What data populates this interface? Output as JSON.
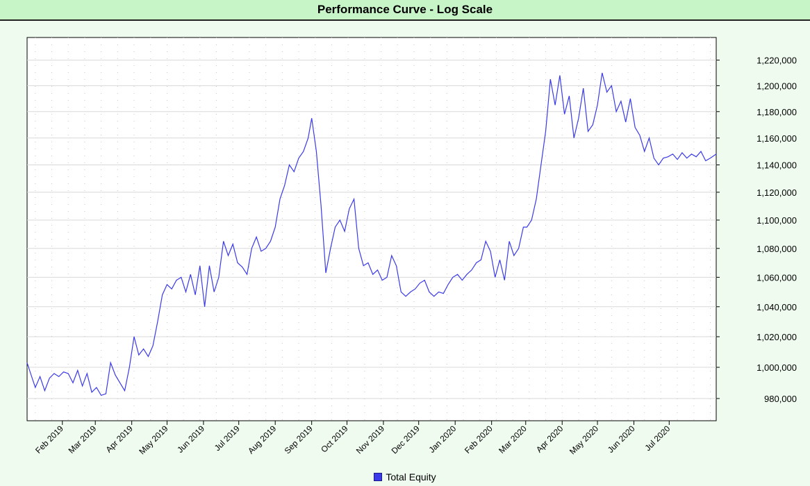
{
  "chart_data": {
    "type": "line",
    "title": "Performance Curve - Log Scale",
    "xlabel": "",
    "ylabel": "",
    "yscale": "log",
    "ylim": [
      966000,
      1238000
    ],
    "xlim": [
      "2019-01-02",
      "2020-08-10"
    ],
    "grid": true,
    "legend_position": "bottom",
    "y_ticks": [
      980000,
      1000000,
      1020000,
      1040000,
      1060000,
      1080000,
      1100000,
      1120000,
      1140000,
      1160000,
      1180000,
      1200000,
      1220000
    ],
    "y_tick_labels": [
      "980,000",
      "1,000,000",
      "1,020,000",
      "1,040,000",
      "1,060,000",
      "1,080,000",
      "1,100,000",
      "1,120,000",
      "1,140,000",
      "1,160,000",
      "1,180,000",
      "1,200,000",
      "1,220,000"
    ],
    "x_ticks": [
      "2019-02-01",
      "2019-03-01",
      "2019-04-01",
      "2019-05-01",
      "2019-06-01",
      "2019-07-01",
      "2019-08-01",
      "2019-09-01",
      "2019-10-01",
      "2019-11-01",
      "2019-12-01",
      "2020-01-01",
      "2020-02-01",
      "2020-03-01",
      "2020-04-01",
      "2020-05-01",
      "2020-06-01",
      "2020-07-01"
    ],
    "x_tick_labels": [
      "Feb 2019",
      "Mar 2019",
      "Apr 2019",
      "May 2019",
      "Jun 2019",
      "Jul 2019",
      "Aug 2019",
      "Sep 2019",
      "Oct 2019",
      "Nov 2019",
      "Dec 2019",
      "Jan 2020",
      "Feb 2020",
      "Mar 2020",
      "Apr 2020",
      "May 2020",
      "Jun 2020",
      "Jul 2020"
    ],
    "series": [
      {
        "name": "Total Equity",
        "color": "#3a3ae8",
        "x": [
          "2019-01-02",
          "2019-01-05",
          "2019-01-09",
          "2019-01-13",
          "2019-01-17",
          "2019-01-21",
          "2019-01-25",
          "2019-01-29",
          "2019-02-02",
          "2019-02-06",
          "2019-02-10",
          "2019-02-14",
          "2019-02-18",
          "2019-02-22",
          "2019-02-26",
          "2019-03-02",
          "2019-03-06",
          "2019-03-10",
          "2019-03-14",
          "2019-03-18",
          "2019-03-22",
          "2019-03-26",
          "2019-03-30",
          "2019-04-03",
          "2019-04-07",
          "2019-04-11",
          "2019-04-15",
          "2019-04-19",
          "2019-04-23",
          "2019-04-27",
          "2019-05-01",
          "2019-05-05",
          "2019-05-09",
          "2019-05-13",
          "2019-05-17",
          "2019-05-21",
          "2019-05-25",
          "2019-05-29",
          "2019-06-02",
          "2019-06-06",
          "2019-06-10",
          "2019-06-14",
          "2019-06-18",
          "2019-06-22",
          "2019-06-26",
          "2019-06-30",
          "2019-07-04",
          "2019-07-08",
          "2019-07-12",
          "2019-07-16",
          "2019-07-20",
          "2019-07-24",
          "2019-07-28",
          "2019-08-01",
          "2019-08-05",
          "2019-08-09",
          "2019-08-13",
          "2019-08-17",
          "2019-08-21",
          "2019-08-25",
          "2019-08-29",
          "2019-09-01",
          "2019-09-05",
          "2019-09-09",
          "2019-09-13",
          "2019-09-17",
          "2019-09-21",
          "2019-09-25",
          "2019-09-29",
          "2019-10-03",
          "2019-10-07",
          "2019-10-11",
          "2019-10-15",
          "2019-10-19",
          "2019-10-23",
          "2019-10-27",
          "2019-10-31",
          "2019-11-04",
          "2019-11-08",
          "2019-11-12",
          "2019-11-16",
          "2019-11-20",
          "2019-11-24",
          "2019-11-28",
          "2019-12-02",
          "2019-12-06",
          "2019-12-10",
          "2019-12-14",
          "2019-12-18",
          "2019-12-22",
          "2019-12-26",
          "2019-12-30",
          "2020-01-03",
          "2020-01-07",
          "2020-01-11",
          "2020-01-15",
          "2020-01-19",
          "2020-01-23",
          "2020-01-27",
          "2020-01-31",
          "2020-02-04",
          "2020-02-08",
          "2020-02-12",
          "2020-02-16",
          "2020-02-20",
          "2020-02-24",
          "2020-02-28",
          "2020-03-02",
          "2020-03-06",
          "2020-03-10",
          "2020-03-14",
          "2020-03-18",
          "2020-03-22",
          "2020-03-26",
          "2020-03-30",
          "2020-04-03",
          "2020-04-07",
          "2020-04-11",
          "2020-04-15",
          "2020-04-19",
          "2020-04-23",
          "2020-04-27",
          "2020-05-01",
          "2020-05-05",
          "2020-05-09",
          "2020-05-13",
          "2020-05-17",
          "2020-05-21",
          "2020-05-25",
          "2020-05-29",
          "2020-06-02",
          "2020-06-06",
          "2020-06-10",
          "2020-06-14",
          "2020-06-18",
          "2020-06-22",
          "2020-06-26",
          "2020-06-30",
          "2020-07-04",
          "2020-07-08",
          "2020-07-12",
          "2020-07-16",
          "2020-07-20",
          "2020-07-24",
          "2020-07-28",
          "2020-08-01",
          "2020-08-05",
          "2020-08-10"
        ],
        "y": [
          1003000,
          996000,
          987000,
          994000,
          985000,
          993000,
          996000,
          994000,
          997000,
          996000,
          990000,
          998000,
          988000,
          996000,
          984000,
          987000,
          982000,
          983000,
          1003000,
          995000,
          990000,
          985000,
          1000000,
          1020000,
          1008000,
          1012000,
          1007000,
          1014000,
          1030000,
          1048000,
          1055000,
          1052000,
          1058000,
          1060000,
          1050000,
          1062000,
          1048000,
          1068000,
          1040000,
          1068000,
          1050000,
          1060000,
          1085000,
          1075000,
          1083000,
          1070000,
          1067000,
          1062000,
          1080000,
          1088000,
          1078000,
          1080000,
          1085000,
          1095000,
          1115000,
          1125000,
          1140000,
          1135000,
          1145000,
          1150000,
          1160000,
          1175000,
          1150000,
          1110000,
          1063000,
          1080000,
          1095000,
          1100000,
          1092000,
          1108000,
          1115000,
          1080000,
          1068000,
          1070000,
          1062000,
          1065000,
          1058000,
          1060000,
          1075000,
          1068000,
          1050000,
          1047000,
          1050000,
          1052000,
          1056000,
          1058000,
          1050000,
          1047000,
          1050000,
          1049000,
          1055000,
          1060000,
          1062000,
          1058000,
          1062000,
          1065000,
          1070000,
          1072000,
          1085000,
          1078000,
          1060000,
          1072000,
          1058000,
          1085000,
          1075000,
          1080000,
          1095000,
          1095000,
          1100000,
          1115000,
          1140000,
          1165000,
          1205000,
          1185000,
          1208000,
          1178000,
          1192000,
          1160000,
          1175000,
          1198000,
          1165000,
          1170000,
          1185000,
          1210000,
          1195000,
          1200000,
          1180000,
          1188000,
          1172000,
          1190000,
          1168000,
          1162000,
          1150000,
          1160000,
          1145000,
          1140000,
          1145000,
          1146000,
          1148000,
          1144000,
          1149000,
          1145000,
          1148000,
          1146000,
          1150000,
          1143000,
          1145000,
          1148000
        ]
      }
    ]
  }
}
